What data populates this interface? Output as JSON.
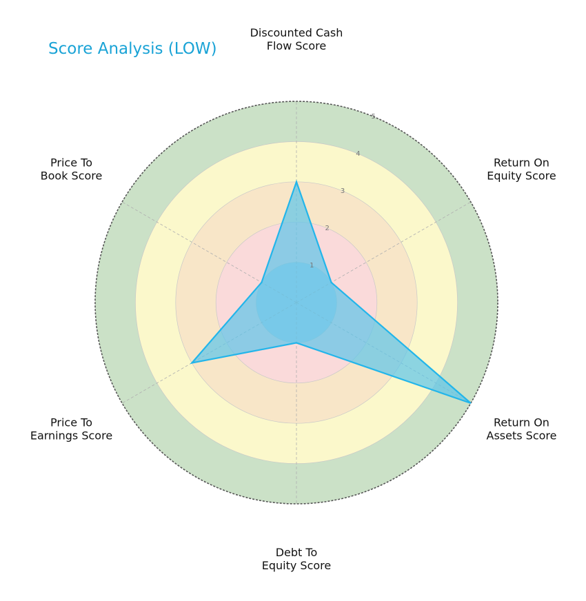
{
  "chart_data": {
    "type": "radar",
    "title": "Score Analysis (LOW)",
    "axes": [
      [
        "Discounted Cash",
        "Flow Score"
      ],
      [
        "Return On",
        "Equity Score"
      ],
      [
        "Return On",
        "Assets Score"
      ],
      [
        "Debt To",
        "Equity Score"
      ],
      [
        "Price To",
        "Earnings Score"
      ],
      [
        "Price To",
        "Book Score"
      ]
    ],
    "values": [
      3,
      1,
      5,
      1,
      3,
      1
    ],
    "rlim": [
      0,
      5
    ],
    "rticks": [
      "1",
      "2",
      "3",
      "4",
      "5"
    ],
    "bands": [
      {
        "from": 0,
        "to": 1,
        "color": "#b7d3e6"
      },
      {
        "from": 1,
        "to": 2,
        "color": "#fadada"
      },
      {
        "from": 2,
        "to": 3,
        "color": "#f8e6c8"
      },
      {
        "from": 3,
        "to": 4,
        "color": "#fbf8cb"
      },
      {
        "from": 4,
        "to": 5,
        "color": "#cbe1c7"
      }
    ],
    "series_color": "#22b5ea",
    "fill_color": "#5cc5ea"
  }
}
